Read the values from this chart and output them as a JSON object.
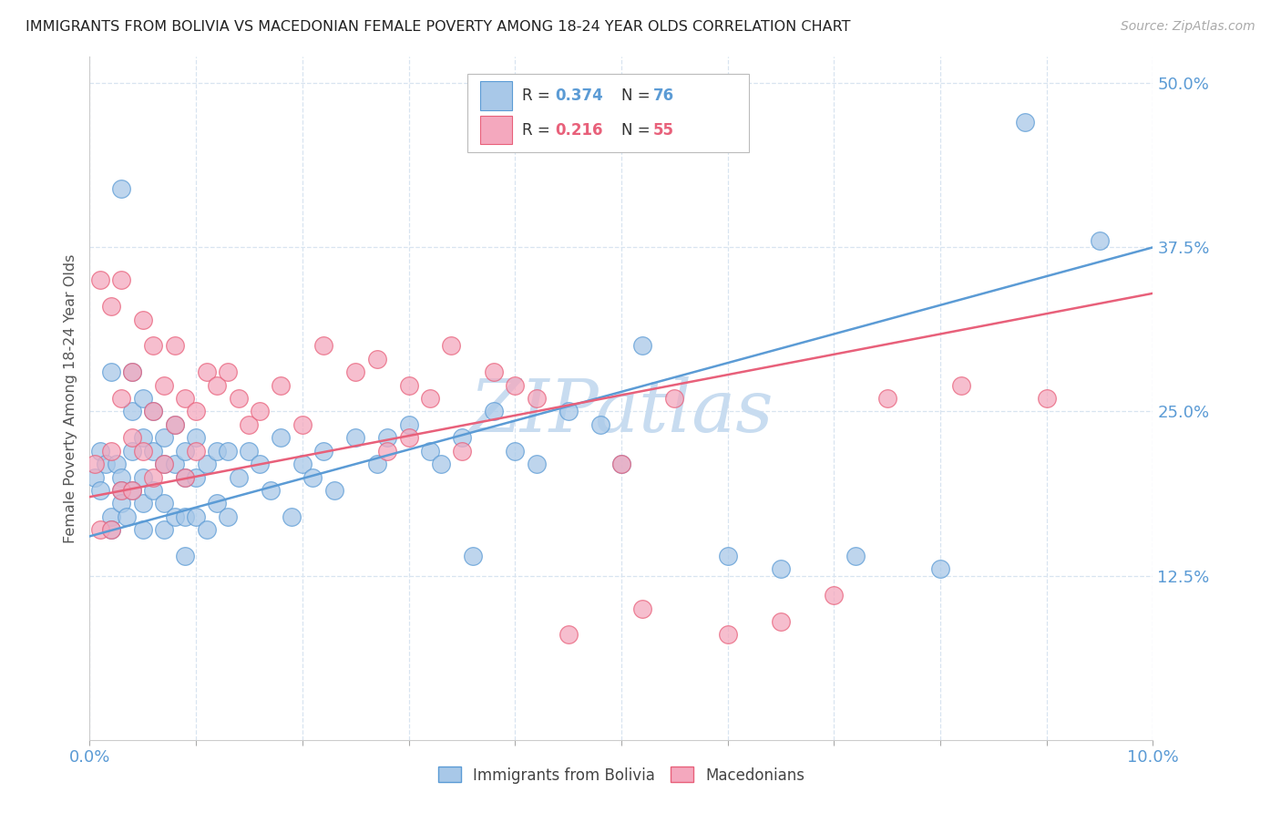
{
  "title": "IMMIGRANTS FROM BOLIVIA VS MACEDONIAN FEMALE POVERTY AMONG 18-24 YEAR OLDS CORRELATION CHART",
  "source": "Source: ZipAtlas.com",
  "ylabel": "Female Poverty Among 18-24 Year Olds",
  "x_ticks": [
    0.0,
    0.01,
    0.02,
    0.03,
    0.04,
    0.05,
    0.06,
    0.07,
    0.08,
    0.09,
    0.1
  ],
  "y_ticks": [
    0.0,
    0.125,
    0.25,
    0.375,
    0.5
  ],
  "y_tick_labels": [
    "",
    "12.5%",
    "25.0%",
    "37.5%",
    "50.0%"
  ],
  "xlim": [
    0.0,
    0.1
  ],
  "ylim": [
    0.0,
    0.52
  ],
  "color_blue": "#A8C8E8",
  "color_pink": "#F4A8BE",
  "color_blue_edge": "#5B9BD5",
  "color_pink_edge": "#E8607A",
  "color_line_blue": "#5B9BD5",
  "color_line_pink": "#E8607A",
  "color_title": "#222222",
  "color_source": "#AAAAAA",
  "color_axis_label": "#5B9BD5",
  "color_watermark": "#C8DCF0",
  "watermark": "ZIPatlas",
  "background_color": "#FFFFFF",
  "grid_color": "#D8E4F0",
  "bolivia_line_x": [
    0.0,
    0.1
  ],
  "bolivia_line_y": [
    0.155,
    0.375
  ],
  "macedonian_line_x": [
    0.0,
    0.1
  ],
  "macedonian_line_y": [
    0.185,
    0.34
  ],
  "bolivia_x": [
    0.0005,
    0.001,
    0.001,
    0.0015,
    0.002,
    0.002,
    0.002,
    0.0025,
    0.003,
    0.003,
    0.003,
    0.003,
    0.0035,
    0.004,
    0.004,
    0.004,
    0.004,
    0.005,
    0.005,
    0.005,
    0.005,
    0.005,
    0.006,
    0.006,
    0.006,
    0.007,
    0.007,
    0.007,
    0.007,
    0.008,
    0.008,
    0.008,
    0.009,
    0.009,
    0.009,
    0.009,
    0.01,
    0.01,
    0.01,
    0.011,
    0.011,
    0.012,
    0.012,
    0.013,
    0.013,
    0.014,
    0.015,
    0.016,
    0.017,
    0.018,
    0.019,
    0.02,
    0.021,
    0.022,
    0.023,
    0.025,
    0.027,
    0.028,
    0.03,
    0.032,
    0.033,
    0.035,
    0.036,
    0.038,
    0.04,
    0.042,
    0.045,
    0.048,
    0.05,
    0.052,
    0.06,
    0.065,
    0.072,
    0.08,
    0.088,
    0.095
  ],
  "bolivia_y": [
    0.2,
    0.19,
    0.22,
    0.21,
    0.28,
    0.17,
    0.16,
    0.21,
    0.42,
    0.2,
    0.19,
    0.18,
    0.17,
    0.28,
    0.25,
    0.22,
    0.19,
    0.26,
    0.23,
    0.2,
    0.18,
    0.16,
    0.25,
    0.22,
    0.19,
    0.23,
    0.21,
    0.18,
    0.16,
    0.24,
    0.21,
    0.17,
    0.22,
    0.2,
    0.17,
    0.14,
    0.23,
    0.2,
    0.17,
    0.21,
    0.16,
    0.22,
    0.18,
    0.22,
    0.17,
    0.2,
    0.22,
    0.21,
    0.19,
    0.23,
    0.17,
    0.21,
    0.2,
    0.22,
    0.19,
    0.23,
    0.21,
    0.23,
    0.24,
    0.22,
    0.21,
    0.23,
    0.14,
    0.25,
    0.22,
    0.21,
    0.25,
    0.24,
    0.21,
    0.3,
    0.14,
    0.13,
    0.14,
    0.13,
    0.47,
    0.38
  ],
  "macedonian_x": [
    0.0005,
    0.001,
    0.001,
    0.002,
    0.002,
    0.002,
    0.003,
    0.003,
    0.003,
    0.004,
    0.004,
    0.004,
    0.005,
    0.005,
    0.006,
    0.006,
    0.006,
    0.007,
    0.007,
    0.008,
    0.008,
    0.009,
    0.009,
    0.01,
    0.01,
    0.011,
    0.012,
    0.013,
    0.014,
    0.015,
    0.016,
    0.018,
    0.02,
    0.022,
    0.025,
    0.027,
    0.028,
    0.03,
    0.03,
    0.032,
    0.034,
    0.035,
    0.038,
    0.04,
    0.042,
    0.045,
    0.05,
    0.052,
    0.055,
    0.06,
    0.065,
    0.07,
    0.075,
    0.082,
    0.09
  ],
  "macedonian_y": [
    0.21,
    0.35,
    0.16,
    0.33,
    0.22,
    0.16,
    0.35,
    0.26,
    0.19,
    0.28,
    0.23,
    0.19,
    0.32,
    0.22,
    0.3,
    0.25,
    0.2,
    0.27,
    0.21,
    0.3,
    0.24,
    0.26,
    0.2,
    0.25,
    0.22,
    0.28,
    0.27,
    0.28,
    0.26,
    0.24,
    0.25,
    0.27,
    0.24,
    0.3,
    0.28,
    0.29,
    0.22,
    0.27,
    0.23,
    0.26,
    0.3,
    0.22,
    0.28,
    0.27,
    0.26,
    0.08,
    0.21,
    0.1,
    0.26,
    0.08,
    0.09,
    0.11,
    0.26,
    0.27,
    0.26
  ]
}
